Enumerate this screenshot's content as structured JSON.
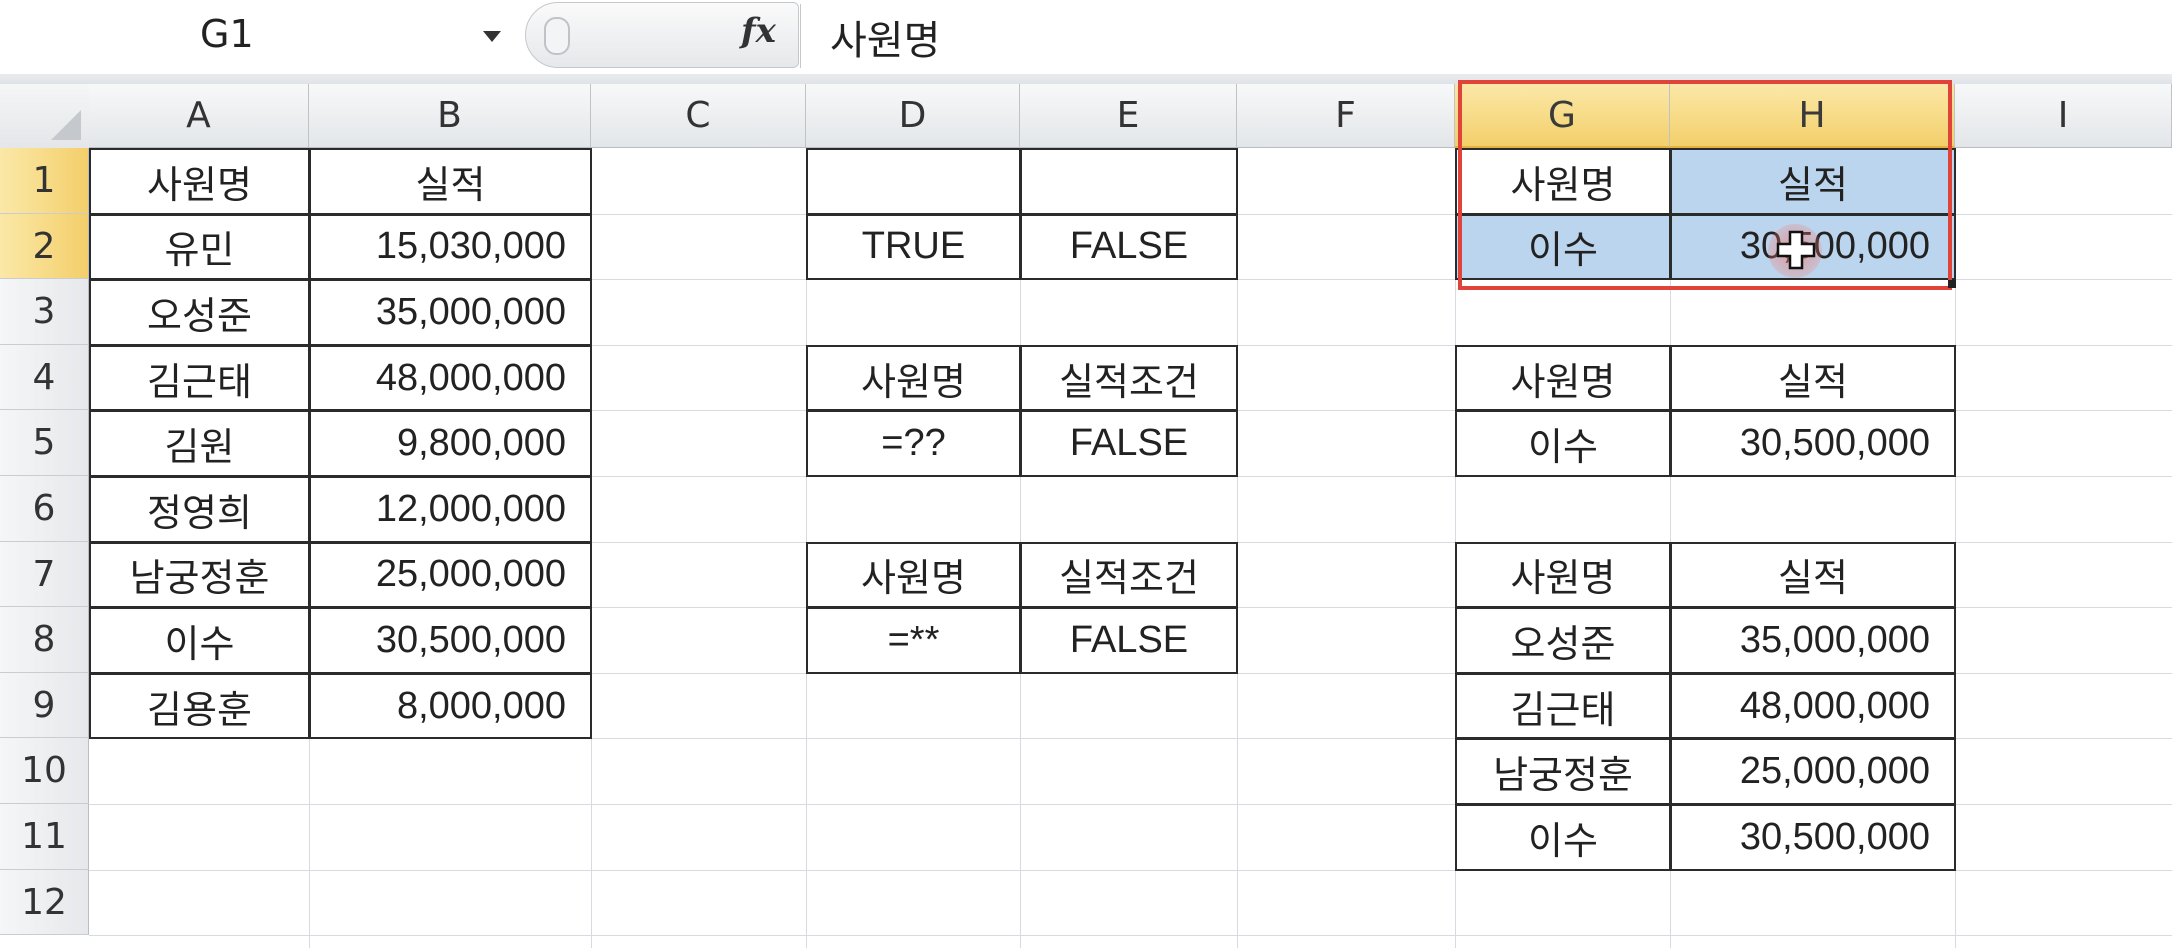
{
  "formula_bar": {
    "name_box": "G1",
    "fx": "fx",
    "formula": "사원명"
  },
  "columns": [
    "A",
    "B",
    "C",
    "D",
    "E",
    "F",
    "G",
    "H",
    "I"
  ],
  "rows": [
    "1",
    "2",
    "3",
    "4",
    "5",
    "6",
    "7",
    "8",
    "9",
    "10",
    "11",
    "12"
  ],
  "selected_columns": [
    "G",
    "H"
  ],
  "selected_rows": [
    "1",
    "2"
  ],
  "cells": {
    "A1": "사원명",
    "B1": "실적",
    "A2": "유민",
    "B2": "15,030,000",
    "A3": "오성준",
    "B3": "35,000,000",
    "A4": "김근태",
    "B4": "48,000,000",
    "A5": "김원",
    "B5": "9,800,000",
    "A6": "정영희",
    "B6": "12,000,000",
    "A7": "남궁정훈",
    "B7": "25,000,000",
    "A8": "이수",
    "B8": "30,500,000",
    "A9": "김용훈",
    "B9": "8,000,000",
    "D1": "",
    "E1": "",
    "D2": "TRUE",
    "E2": "FALSE",
    "D4": "사원명",
    "E4": "실적조건",
    "D5": "=??",
    "E5": "FALSE",
    "D7": "사원명",
    "E7": "실적조건",
    "D8": "=**",
    "E8": "FALSE",
    "G1": "사원명",
    "H1": "실적",
    "G2": "이수",
    "H2": "30,500,000",
    "G4": "사원명",
    "H4": "실적",
    "G5": "이수",
    "H5": "30,500,000",
    "G7": "사원명",
    "H7": "실적",
    "G8": "오성준",
    "H8": "35,000,000",
    "G9": "김근태",
    "H9": "48,000,000",
    "G10": "남궁정훈",
    "H10": "25,000,000",
    "G11": "이수",
    "H11": "30,500,000"
  },
  "colors": {
    "selection_outline": "#e0433a",
    "selected_cell_fill": "#bcd5ee",
    "selected_header": "#f3cf6b"
  }
}
